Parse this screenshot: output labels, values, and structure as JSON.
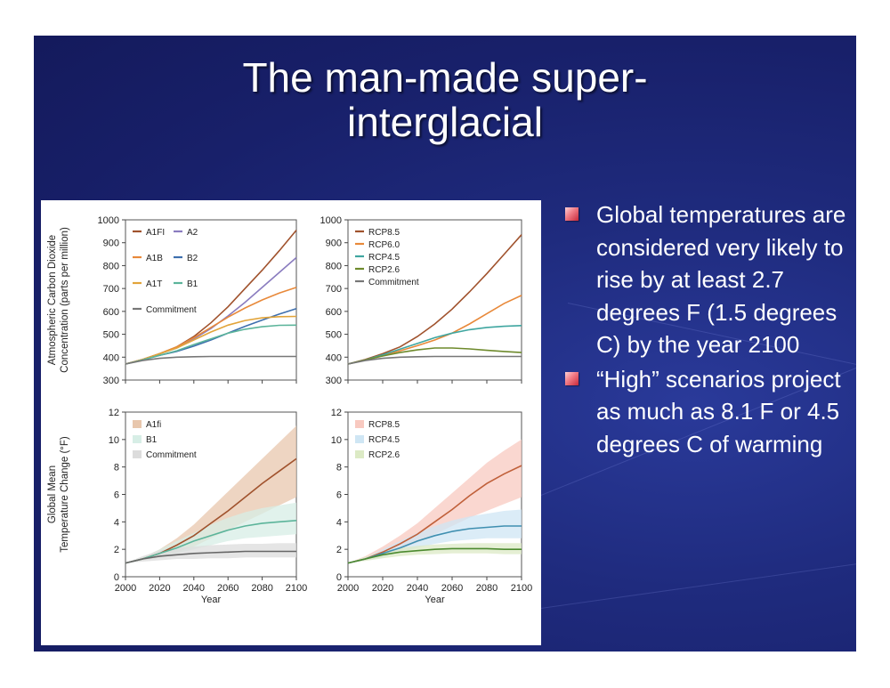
{
  "slide": {
    "title_lines": [
      "The man-made super-",
      "interglacial"
    ],
    "bullets": [
      "Global temperatures are considered very likely to rise by at least 2.7 degrees F (1.5 degrees C) by the year 2100",
      "“High” scenarios project as much as 8.1 F or 4.5 degrees C of warming"
    ],
    "colors": {
      "background": "#1c2574",
      "title": "#ffffff",
      "bullet_text": "#ffffff",
      "bullet_marker": "#e05563"
    }
  },
  "chart_data": [
    {
      "type": "line",
      "panel": "top-left",
      "ylabel": "Atmospheric Carbon Dioxide Concentration (parts per million)",
      "ylabel_lines": [
        "Atmospheric Carbon Dioxide",
        "Concentration (parts per million)"
      ],
      "xlabel": "",
      "ylim": [
        300,
        1000
      ],
      "yticks": [
        300,
        400,
        500,
        600,
        700,
        800,
        900,
        1000
      ],
      "xlim": [
        2000,
        2100
      ],
      "legend": {
        "placement": "top-left",
        "columns": 2
      },
      "x": [
        2000,
        2010,
        2020,
        2030,
        2040,
        2050,
        2060,
        2070,
        2080,
        2090,
        2100
      ],
      "series": [
        {
          "name": "A1FI",
          "color": "#a0522d",
          "values": [
            370,
            390,
            415,
            445,
            490,
            550,
            620,
            700,
            780,
            865,
            955
          ]
        },
        {
          "name": "A2",
          "color": "#8a7cbf",
          "values": [
            370,
            390,
            415,
            440,
            480,
            525,
            580,
            640,
            705,
            770,
            835
          ]
        },
        {
          "name": "A1B",
          "color": "#e8893a",
          "values": [
            370,
            390,
            415,
            445,
            485,
            530,
            575,
            615,
            650,
            680,
            705
          ]
        },
        {
          "name": "B2",
          "color": "#3e6fae",
          "values": [
            370,
            388,
            408,
            425,
            448,
            475,
            505,
            535,
            562,
            588,
            612
          ]
        },
        {
          "name": "A1T",
          "color": "#e2a43a",
          "values": [
            370,
            390,
            415,
            440,
            475,
            510,
            540,
            560,
            572,
            577,
            578
          ]
        },
        {
          "name": "B1",
          "color": "#5bb49a",
          "values": [
            370,
            388,
            408,
            428,
            455,
            480,
            505,
            522,
            533,
            539,
            540
          ]
        },
        {
          "name": "Commitment",
          "color": "#777777",
          "values": [
            370,
            385,
            395,
            400,
            402,
            403,
            403,
            403,
            403,
            403,
            403
          ]
        }
      ]
    },
    {
      "type": "line",
      "panel": "top-right",
      "ylim": [
        300,
        1000
      ],
      "yticks": [
        300,
        400,
        500,
        600,
        700,
        800,
        900,
        1000
      ],
      "xlim": [
        2000,
        2100
      ],
      "legend": {
        "placement": "top-left",
        "columns": 1
      },
      "x": [
        2000,
        2010,
        2020,
        2030,
        2040,
        2050,
        2060,
        2070,
        2080,
        2090,
        2100
      ],
      "series": [
        {
          "name": "RCP8.5",
          "color": "#a0522d",
          "values": [
            370,
            390,
            415,
            445,
            490,
            545,
            610,
            685,
            765,
            850,
            935
          ]
        },
        {
          "name": "RCP6.0",
          "color": "#e8893a",
          "values": [
            370,
            388,
            408,
            428,
            450,
            475,
            505,
            545,
            590,
            635,
            670
          ]
        },
        {
          "name": "RCP4.5",
          "color": "#3fa6a0",
          "values": [
            370,
            388,
            410,
            435,
            460,
            485,
            505,
            520,
            530,
            535,
            538
          ]
        },
        {
          "name": "RCP2.6",
          "color": "#6e8a2c",
          "values": [
            370,
            388,
            405,
            420,
            432,
            440,
            440,
            436,
            430,
            425,
            420
          ]
        },
        {
          "name": "Commitment",
          "color": "#777777",
          "values": [
            370,
            385,
            395,
            400,
            402,
            403,
            403,
            403,
            403,
            403,
            403
          ]
        }
      ]
    },
    {
      "type": "area",
      "panel": "bottom-left",
      "ylabel": "Global Mean Temperature Change (°F)",
      "ylabel_lines": [
        "Global Mean",
        "Temperature Change (°F)"
      ],
      "xlabel": "Year",
      "ylim": [
        0,
        12
      ],
      "yticks": [
        0,
        2,
        4,
        6,
        8,
        10,
        12
      ],
      "xlim": [
        2000,
        2100
      ],
      "xticks": [
        2000,
        2020,
        2040,
        2060,
        2080,
        2100
      ],
      "legend": {
        "placement": "top-left",
        "columns": 1
      },
      "x": [
        2000,
        2010,
        2020,
        2030,
        2040,
        2050,
        2060,
        2070,
        2080,
        2090,
        2100
      ],
      "series": [
        {
          "name": "A1fi",
          "color": "#a0522d",
          "band_color": "#e8c7ad",
          "values": [
            1.0,
            1.3,
            1.7,
            2.3,
            3.0,
            3.9,
            4.8,
            5.8,
            6.8,
            7.7,
            8.6
          ],
          "lower": [
            1.0,
            1.2,
            1.4,
            1.8,
            2.2,
            2.8,
            3.4,
            4.0,
            4.6,
            5.2,
            5.8
          ],
          "upper": [
            1.0,
            1.4,
            2.0,
            2.8,
            3.8,
            5.0,
            6.2,
            7.4,
            8.6,
            9.8,
            11.0
          ]
        },
        {
          "name": "B1",
          "color": "#5bb49a",
          "band_color": "#d7eee6",
          "values": [
            1.0,
            1.3,
            1.7,
            2.1,
            2.6,
            3.0,
            3.4,
            3.7,
            3.9,
            4.0,
            4.1
          ],
          "lower": [
            1.0,
            1.2,
            1.4,
            1.7,
            2.0,
            2.3,
            2.6,
            2.8,
            2.9,
            3.0,
            3.1
          ],
          "upper": [
            1.0,
            1.4,
            2.0,
            2.6,
            3.2,
            3.8,
            4.3,
            4.7,
            5.0,
            5.2,
            5.4
          ]
        },
        {
          "name": "Commitment",
          "color": "#666666",
          "band_color": "#dcdcdc",
          "values": [
            1.0,
            1.3,
            1.5,
            1.6,
            1.7,
            1.75,
            1.8,
            1.85,
            1.85,
            1.85,
            1.85
          ],
          "lower": [
            1.0,
            1.1,
            1.2,
            1.3,
            1.3,
            1.35,
            1.35,
            1.4,
            1.4,
            1.4,
            1.4
          ],
          "upper": [
            1.0,
            1.5,
            1.9,
            2.1,
            2.2,
            2.3,
            2.35,
            2.4,
            2.4,
            2.45,
            2.45
          ]
        }
      ]
    },
    {
      "type": "area",
      "panel": "bottom-right",
      "xlabel": "Year",
      "ylim": [
        0,
        12
      ],
      "yticks": [
        0,
        2,
        4,
        6,
        8,
        10,
        12
      ],
      "xlim": [
        2000,
        2100
      ],
      "xticks": [
        2000,
        2020,
        2040,
        2060,
        2080,
        2100
      ],
      "legend": {
        "placement": "top-left",
        "columns": 1
      },
      "x": [
        2000,
        2010,
        2020,
        2030,
        2040,
        2050,
        2060,
        2070,
        2080,
        2090,
        2100
      ],
      "series": [
        {
          "name": "RCP8.5",
          "color": "#c0603a",
          "band_color": "#f8c9c0",
          "values": [
            1.0,
            1.3,
            1.8,
            2.4,
            3.1,
            4.0,
            4.9,
            5.9,
            6.8,
            7.5,
            8.1
          ],
          "lower": [
            1.0,
            1.2,
            1.5,
            2.0,
            2.5,
            3.1,
            3.7,
            4.3,
            4.8,
            5.3,
            5.8
          ],
          "upper": [
            1.0,
            1.5,
            2.2,
            3.0,
            3.9,
            5.0,
            6.1,
            7.2,
            8.3,
            9.2,
            10.0
          ]
        },
        {
          "name": "RCP4.5",
          "color": "#3f8fb0",
          "band_color": "#cfe6f4",
          "values": [
            1.0,
            1.3,
            1.7,
            2.1,
            2.6,
            3.0,
            3.3,
            3.5,
            3.6,
            3.7,
            3.7
          ],
          "lower": [
            1.0,
            1.2,
            1.4,
            1.8,
            2.1,
            2.4,
            2.6,
            2.7,
            2.8,
            2.8,
            2.8
          ],
          "upper": [
            1.0,
            1.4,
            2.0,
            2.6,
            3.2,
            3.7,
            4.1,
            4.4,
            4.6,
            4.8,
            4.9
          ]
        },
        {
          "name": "RCP2.6",
          "color": "#4c8a2f",
          "band_color": "#dceac5",
          "values": [
            1.0,
            1.3,
            1.6,
            1.8,
            1.9,
            2.0,
            2.05,
            2.05,
            2.05,
            2.0,
            2.0
          ],
          "lower": [
            1.0,
            1.15,
            1.35,
            1.5,
            1.6,
            1.65,
            1.7,
            1.7,
            1.7,
            1.65,
            1.65
          ],
          "upper": [
            1.0,
            1.45,
            1.85,
            2.1,
            2.25,
            2.35,
            2.4,
            2.45,
            2.45,
            2.45,
            2.45
          ]
        }
      ]
    }
  ]
}
